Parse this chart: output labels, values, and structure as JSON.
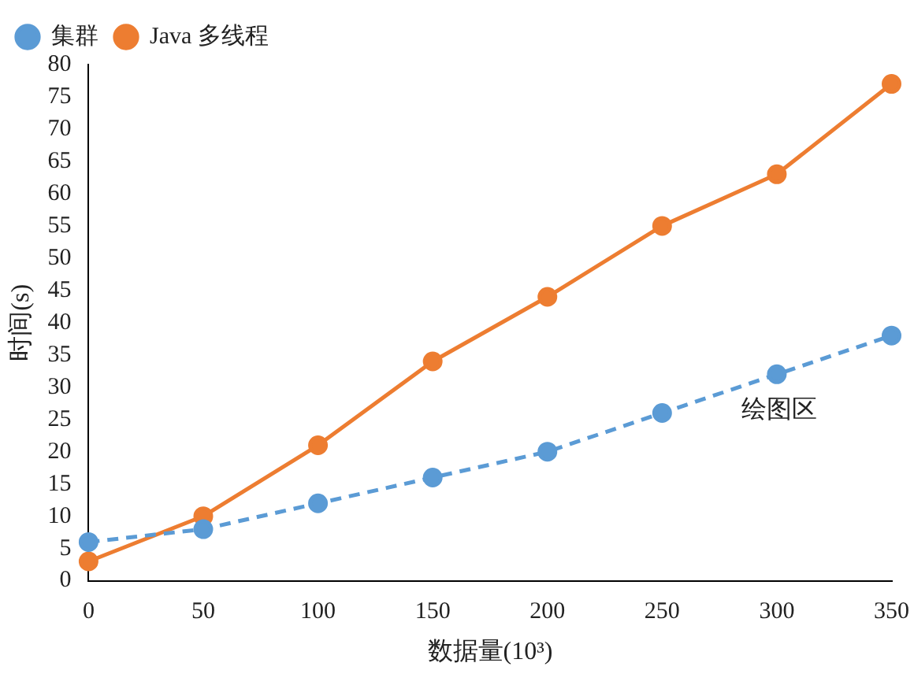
{
  "chart_data": {
    "type": "line",
    "xlabel": "数据量(10³)",
    "ylabel": "时间(s)",
    "categories": [
      "0",
      "50",
      "100",
      "150",
      "200",
      "250",
      "300",
      "350"
    ],
    "series": [
      {
        "name": "集群",
        "color": "#5b9bd5",
        "values": [
          6,
          8,
          12,
          16,
          20,
          26,
          32,
          38
        ],
        "line_style": "dashed",
        "marker": "circle"
      },
      {
        "name": "Java 多线程",
        "color": "#ed7d31",
        "values": [
          3,
          10,
          21,
          34,
          44,
          55,
          63,
          77
        ],
        "line_style": "solid",
        "marker": "circle"
      }
    ],
    "ylim": [
      0,
      80
    ],
    "yticks": [
      0,
      5,
      10,
      15,
      20,
      25,
      30,
      35,
      40,
      45,
      50,
      55,
      60,
      65,
      70,
      75,
      80
    ],
    "grid": false,
    "legend": "top left",
    "annotations": [
      "绘图区"
    ]
  }
}
